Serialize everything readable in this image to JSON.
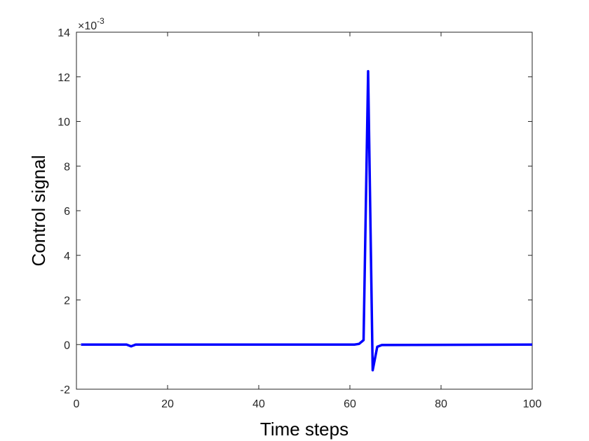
{
  "chart_data": {
    "type": "line",
    "x_label": "Time steps",
    "y_label": "Control signal",
    "y_multiplier": {
      "base": "×10",
      "exponent": "-3"
    },
    "series": [
      {
        "color": "#0000ff",
        "x": [
          1,
          11,
          12,
          13,
          61,
          62,
          63,
          64,
          65,
          66,
          67,
          100
        ],
        "values": [
          0,
          0,
          -0.08,
          0,
          0,
          0.03,
          0.2,
          12.25,
          -1.15,
          -0.1,
          -0.02,
          0
        ]
      }
    ],
    "xlim": [
      0,
      100
    ],
    "xticks": [
      0,
      20,
      40,
      60,
      80,
      100
    ],
    "ylim": [
      -2,
      14
    ],
    "yticks": [
      -2,
      0,
      2,
      4,
      6,
      8,
      10,
      12,
      14
    ],
    "grid": false,
    "box": true
  }
}
